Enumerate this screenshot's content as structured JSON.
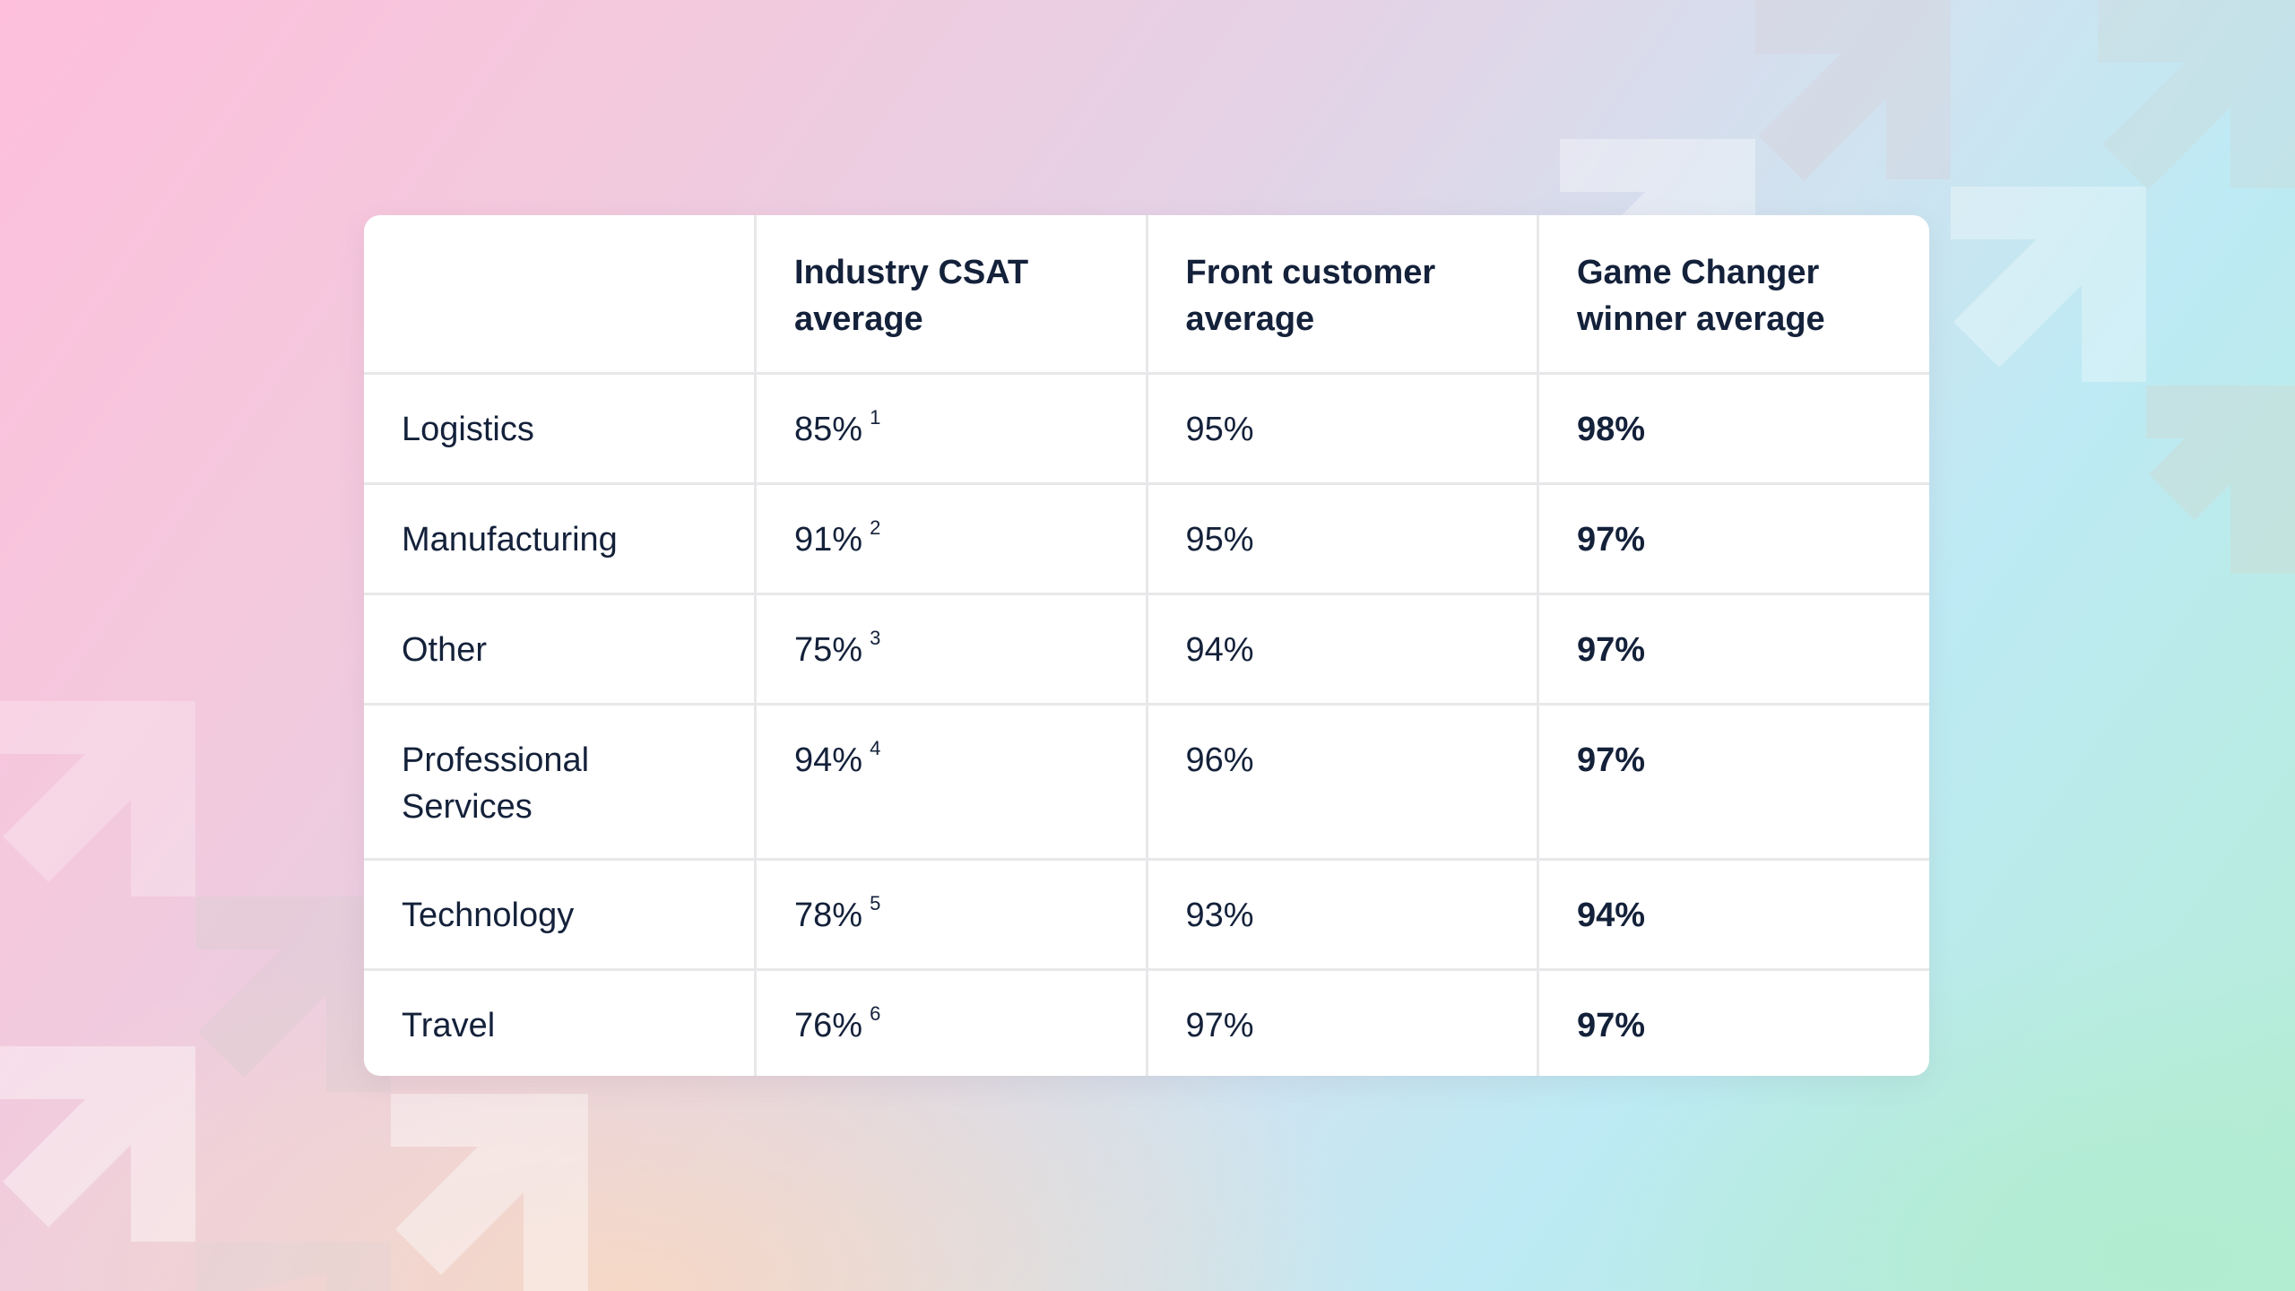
{
  "colors": {
    "text": "#14213a",
    "card_background": "#ffffff",
    "grid_lines": "#e8e8ea",
    "background_gradient": [
      "#fdbfdc",
      "#e5d2e6",
      "#bdeaf4",
      "#b5edd6"
    ]
  },
  "table": {
    "headers": [
      "",
      "Industry CSAT average",
      "Front customer average",
      "Game Changer winner average"
    ],
    "rows": [
      {
        "industry": "Logistics",
        "industry_csat": "85%",
        "footnote": "1",
        "front": "95%",
        "game_changer": "98%"
      },
      {
        "industry": "Manufacturing",
        "industry_csat": "91%",
        "footnote": "2",
        "front": "95%",
        "game_changer": "97%"
      },
      {
        "industry": "Other",
        "industry_csat": "75%",
        "footnote": "3",
        "front": "94%",
        "game_changer": "97%"
      },
      {
        "industry": "Professional Services",
        "industry_csat": "94%",
        "footnote": "4",
        "front": "96%",
        "game_changer": "97%"
      },
      {
        "industry": "Technology",
        "industry_csat": "78%",
        "footnote": "5",
        "front": "93%",
        "game_changer": "94%"
      },
      {
        "industry": "Travel",
        "industry_csat": "76%",
        "footnote": "6",
        "front": "97%",
        "game_changer": "97%"
      }
    ]
  },
  "decorations": {
    "background_icon": "diagonal-up-right-arrow-icon"
  }
}
